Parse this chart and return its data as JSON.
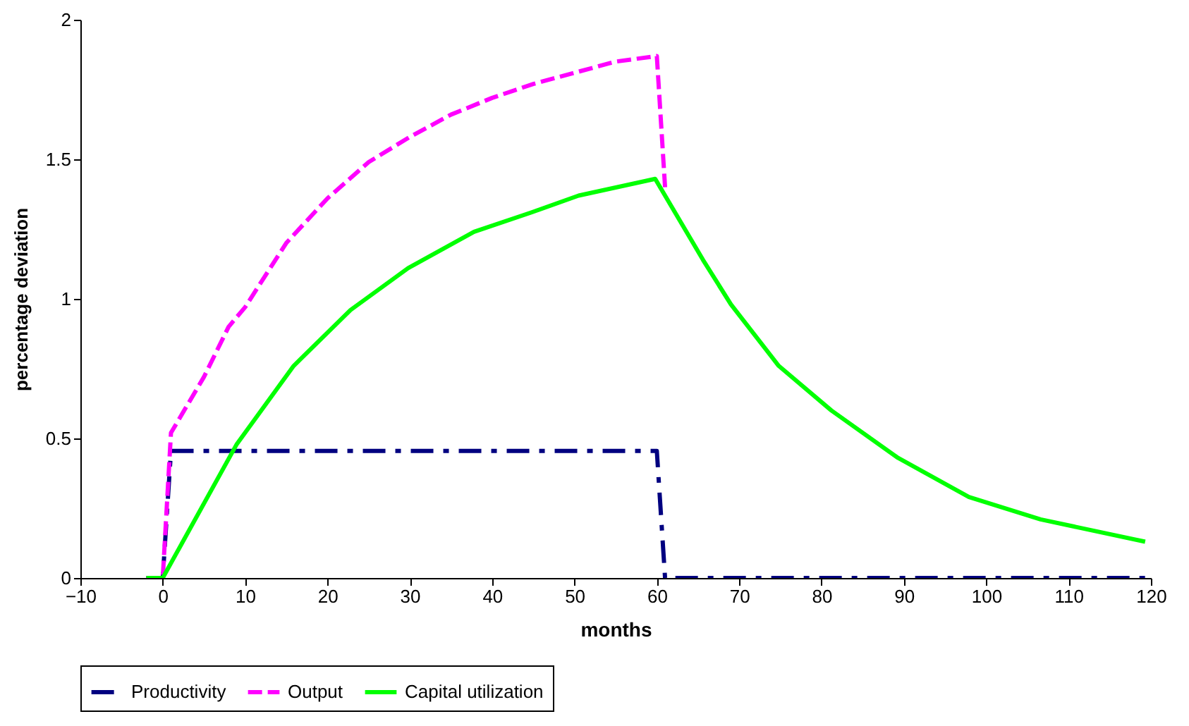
{
  "chart_data": {
    "type": "line",
    "xlabel": "months",
    "ylabel": "percentage deviation",
    "xlim": [
      -10,
      120
    ],
    "xticks": [
      -10,
      0,
      10,
      20,
      30,
      40,
      50,
      60,
      70,
      80,
      90,
      100,
      110,
      120
    ],
    "ylim": [
      0,
      2
    ],
    "yticks": [
      0,
      0.5,
      1,
      1.5,
      2
    ],
    "grid": false,
    "legend": "bottom",
    "marker": "none",
    "series": [
      {
        "name": "Productivity",
        "color": "#000080",
        "line_style": "dashdot",
        "x": [
          -2,
          0,
          1,
          60,
          61,
          120
        ],
        "values": [
          0,
          0,
          0.455,
          0.455,
          0,
          0
        ]
      },
      {
        "name": "Output",
        "color": "#ff00ff",
        "line_style": "dashed",
        "x": [
          -2,
          0,
          1,
          3,
          5,
          8,
          10,
          15,
          20,
          25,
          30,
          35,
          40,
          45,
          50,
          55,
          60,
          61
        ],
        "values": [
          0,
          0,
          0.52,
          0.62,
          0.72,
          0.9,
          0.97,
          1.2,
          1.36,
          1.49,
          1.58,
          1.66,
          1.72,
          1.77,
          1.81,
          1.85,
          1.87,
          1.4
        ]
      },
      {
        "name": "Capital utilization",
        "color": "#00ff00",
        "line_style": "solid",
        "x": [
          -2,
          0,
          9,
          15.9,
          22.8,
          29.8,
          37.8,
          44.8,
          50.5,
          59.8,
          65.6,
          69,
          74.8,
          81.2,
          89.3,
          97.9,
          106.6,
          119.3
        ],
        "values": [
          0,
          0,
          0.48,
          0.76,
          0.96,
          1.11,
          1.24,
          1.31,
          1.37,
          1.43,
          1.14,
          0.98,
          0.76,
          0.6,
          0.43,
          0.29,
          0.21,
          0.13
        ]
      }
    ]
  }
}
